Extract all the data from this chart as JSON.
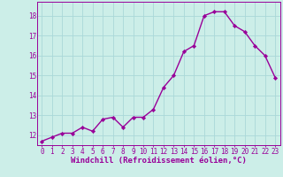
{
  "x_values": [
    0,
    1,
    2,
    3,
    4,
    5,
    6,
    7,
    8,
    9,
    10,
    11,
    12,
    13,
    14,
    15,
    16,
    17,
    18,
    19,
    20,
    21,
    22,
    23
  ],
  "y_values": [
    11.7,
    11.9,
    12.1,
    12.1,
    12.4,
    12.2,
    12.8,
    12.9,
    12.4,
    12.9,
    12.9,
    13.3,
    14.4,
    15.0,
    16.2,
    16.5,
    18.0,
    18.2,
    18.2,
    17.5,
    17.2,
    16.5,
    16.0,
    14.9
  ],
  "line_color": "#990099",
  "marker": "D",
  "marker_size": 2.2,
  "background_color": "#cceee8",
  "grid_color": "#aad8d8",
  "xlabel": "Windchill (Refroidissement éolien,°C)",
  "ylabel": "",
  "ylim": [
    11.5,
    18.7
  ],
  "xlim": [
    -0.5,
    23.5
  ],
  "yticks": [
    12,
    13,
    14,
    15,
    16,
    17,
    18
  ],
  "xticks": [
    0,
    1,
    2,
    3,
    4,
    5,
    6,
    7,
    8,
    9,
    10,
    11,
    12,
    13,
    14,
    15,
    16,
    17,
    18,
    19,
    20,
    21,
    22,
    23
  ],
  "tick_color": "#990099",
  "tick_label_fontsize": 5.5,
  "xlabel_fontsize": 6.5,
  "line_width": 1.0
}
